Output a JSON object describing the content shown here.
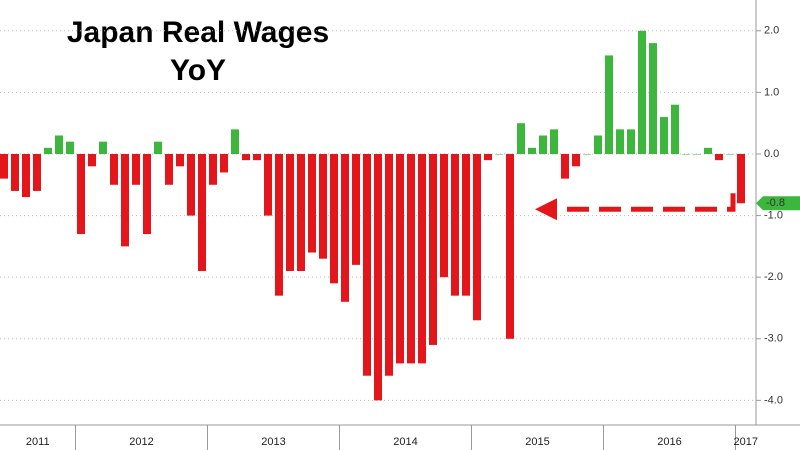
{
  "chart_data": {
    "type": "bar",
    "title_lines": [
      "Japan Real Wages",
      "YoY"
    ],
    "categories": [
      null,
      null,
      null,
      null,
      null,
      null,
      null,
      null,
      null,
      null,
      null,
      null,
      null,
      null,
      null,
      null,
      null,
      null,
      null,
      null,
      null,
      null,
      null,
      null,
      null,
      null,
      null,
      null,
      null,
      null,
      null,
      null,
      null,
      null,
      null,
      null,
      null,
      null,
      null,
      null,
      null,
      null,
      null,
      null,
      null,
      null,
      null,
      null,
      null,
      null,
      null,
      null,
      null,
      null,
      null,
      null,
      null,
      null,
      null,
      null,
      null,
      null,
      null,
      null,
      null,
      null,
      null,
      null
    ],
    "year_labels": [
      "2011",
      "2012",
      "2013",
      "2014",
      "2015",
      "2016",
      "2017"
    ],
    "values": [
      -0.4,
      -0.6,
      -0.7,
      -0.6,
      0.1,
      0.3,
      0.2,
      -1.3,
      -0.2,
      0.2,
      -0.5,
      -1.5,
      -0.5,
      -1.3,
      0.2,
      -0.5,
      -0.2,
      -1.0,
      -1.9,
      -0.5,
      -0.3,
      0.4,
      -0.1,
      -0.1,
      -1.0,
      -2.3,
      -1.9,
      -1.9,
      -1.6,
      -1.7,
      -2.1,
      -2.4,
      -1.8,
      -3.6,
      -4.0,
      -3.6,
      -3.4,
      -3.4,
      -3.4,
      -3.1,
      -2.0,
      -2.3,
      -2.3,
      -2.7,
      -0.1,
      0,
      -3.0,
      0.5,
      0.1,
      0.3,
      0.4,
      -0.4,
      -0.2,
      0,
      0.3,
      1.6,
      0.4,
      0.4,
      2.0,
      1.8,
      0.6,
      0.8,
      0,
      0,
      0.1,
      -0.1,
      0,
      -0.8
    ],
    "positive_color": "#3cb63c",
    "negative_color": "#e3161b",
    "ylim": [
      -4.4,
      2.5
    ],
    "yticks": [
      {
        "value": 2,
        "label": "2.0"
      },
      {
        "value": 1,
        "label": "1.0"
      },
      {
        "value": 0,
        "label": "0.0"
      },
      {
        "value": -1,
        "label": "-1.0"
      },
      {
        "value": -2,
        "label": "-2.0"
      },
      {
        "value": -3,
        "label": "-3.0"
      },
      {
        "value": -4,
        "label": "-4.0"
      }
    ],
    "grid": true
  }
}
